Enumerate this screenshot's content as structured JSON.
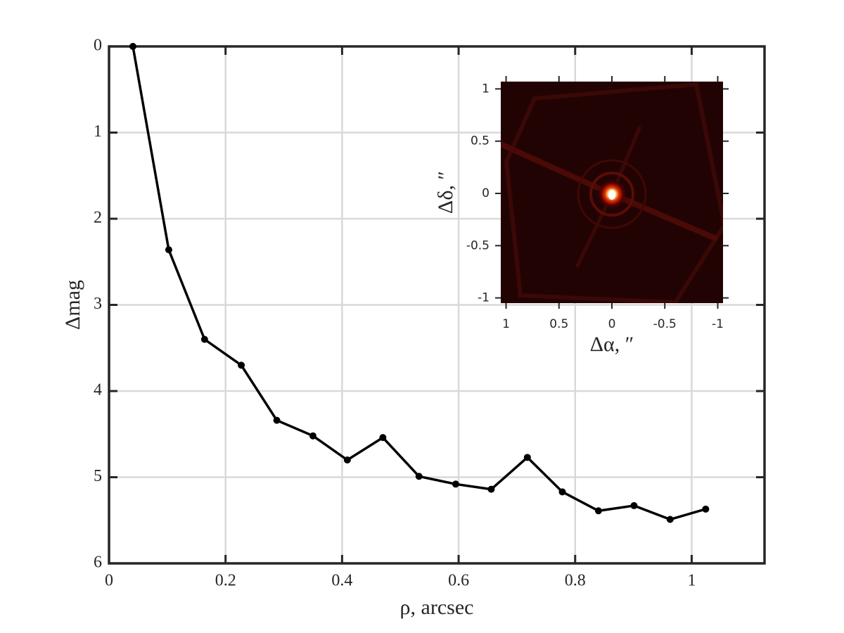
{
  "chart_data": [
    {
      "type": "line",
      "xlabel": "ρ, arcsec",
      "ylabel": "Δmag",
      "x": [
        0.041,
        0.1025,
        0.164,
        0.227,
        0.288,
        0.35,
        0.409,
        0.47,
        0.532,
        0.595,
        0.656,
        0.718,
        0.778,
        0.84,
        0.901,
        0.963,
        1.024
      ],
      "series": [
        {
          "name": "Δmag",
          "color": "#000000",
          "values": [
            0,
            2.36,
            3.4,
            3.7,
            4.34,
            4.52,
            4.8,
            4.54,
            4.99,
            5.08,
            5.14,
            4.77,
            5.17,
            5.39,
            5.33,
            5.49,
            5.37
          ]
        }
      ],
      "xlim": [
        0,
        1.125
      ],
      "xticks": [
        0,
        0.2,
        0.4,
        0.6,
        0.8,
        1
      ],
      "ylim": [
        0,
        6
      ],
      "yticks": [
        0,
        1,
        2,
        3,
        4,
        5,
        6
      ],
      "y_reversed": true,
      "grid": true
    },
    {
      "type": "image",
      "xlabel": "Δα, ″",
      "ylabel": "Δδ, ″",
      "xlim": [
        1.05,
        -1.05
      ],
      "xticks": [
        1,
        0.5,
        0,
        -0.5,
        -1
      ],
      "ylim": [
        -1.05,
        1.07
      ],
      "yticks": [
        -1,
        -0.5,
        0,
        0.5,
        1
      ]
    }
  ]
}
